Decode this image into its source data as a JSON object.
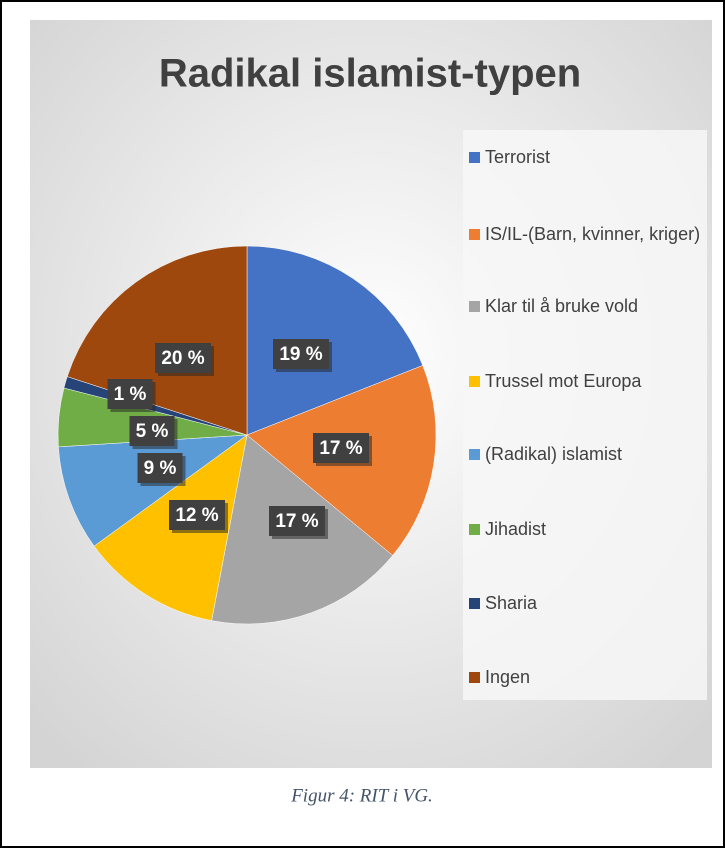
{
  "chart_data": {
    "type": "pie",
    "title": "Radikal islamist-typen",
    "categories": [
      "Terrorist",
      "IS/IL-(Barn, kvinner, kriger)",
      "Klar til å bruke vold",
      "Trussel mot Europa",
      "(Radikal) islamist",
      "Jihadist",
      "Sharia",
      "Ingen"
    ],
    "values": [
      19,
      17,
      17,
      12,
      9,
      5,
      1,
      20
    ],
    "value_labels": [
      "19 %",
      "17 %",
      "17 %",
      "12 %",
      "9 %",
      "5 %",
      "1 %",
      "20 %"
    ],
    "colors": [
      "#4472c4",
      "#ed7d31",
      "#a5a5a5",
      "#ffc000",
      "#5b9bd5",
      "#70ad47",
      "#264478",
      "#9e480e"
    ],
    "legend": "right"
  },
  "caption": "Figur 4: RIT i VG."
}
